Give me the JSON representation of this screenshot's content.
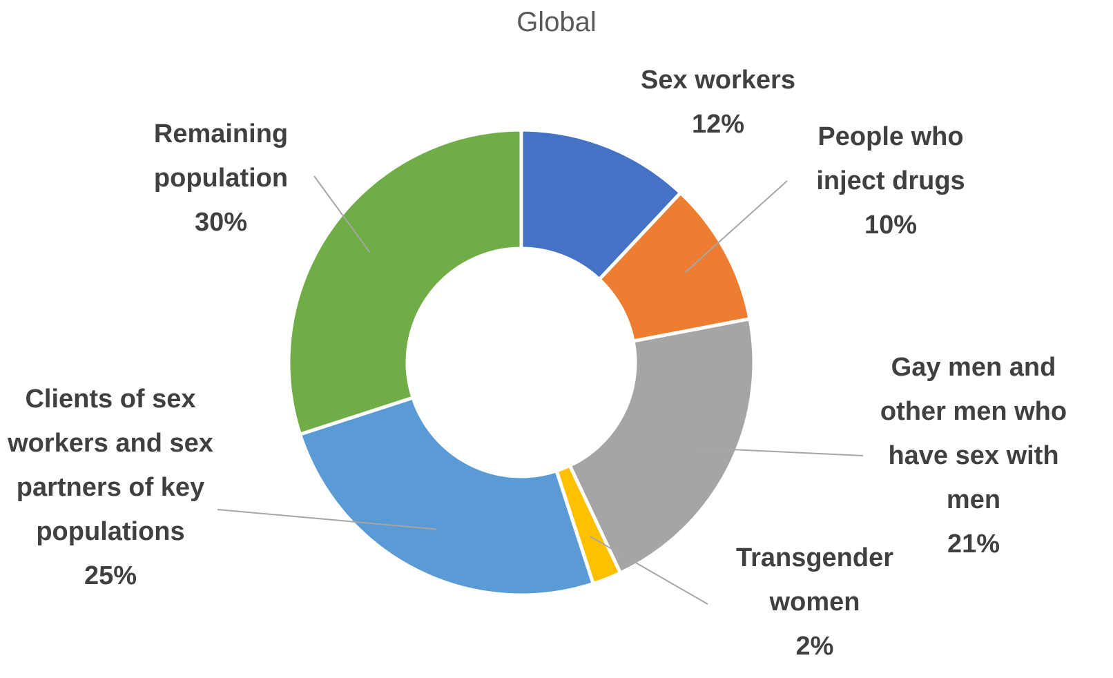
{
  "chart_data": {
    "type": "donut",
    "title": "Global",
    "categories": [
      "Sex workers",
      "People who inject drugs",
      "Gay men and other men who have sex with men",
      "Transgender women",
      "Clients of sex workers and sex partners of key populations",
      "Remaining population"
    ],
    "values": [
      12,
      10,
      21,
      2,
      25,
      30
    ],
    "value_labels": [
      "12%",
      "10%",
      "21%",
      "2%",
      "25%",
      "30%"
    ],
    "colors": [
      "#4472c4",
      "#ed7d31",
      "#a5a5a5",
      "#ffc000",
      "#5b9bd5",
      "#70ad47"
    ]
  }
}
